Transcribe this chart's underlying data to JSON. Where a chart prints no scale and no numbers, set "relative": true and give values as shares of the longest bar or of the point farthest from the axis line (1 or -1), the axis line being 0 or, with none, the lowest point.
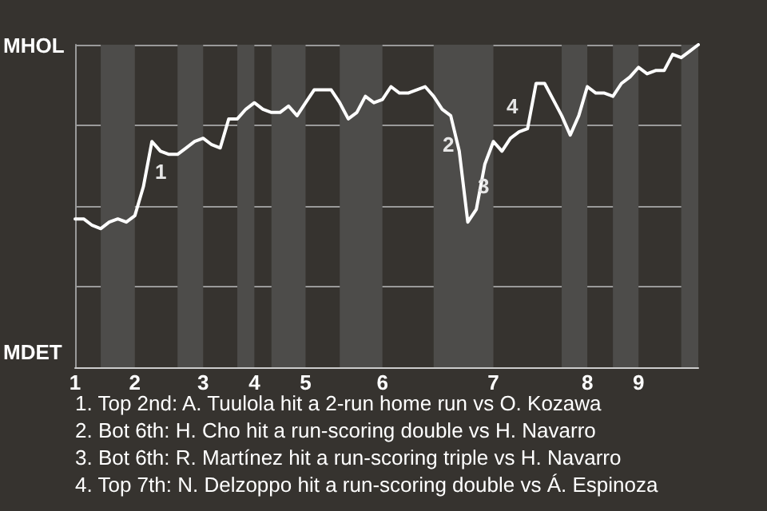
{
  "chart_data": {
    "type": "line",
    "relative": true,
    "categories": [
      "1",
      null,
      null,
      null,
      null,
      null,
      null,
      "2",
      null,
      null,
      null,
      null,
      null,
      null,
      null,
      "3",
      null,
      null,
      null,
      null,
      null,
      "4",
      null,
      null,
      null,
      null,
      null,
      "5",
      null,
      null,
      null,
      null,
      null,
      null,
      null,
      null,
      "6",
      null,
      null,
      null,
      null,
      null,
      null,
      null,
      null,
      null,
      null,
      null,
      null,
      "7",
      null,
      null,
      null,
      null,
      null,
      null,
      null,
      null,
      null,
      null,
      "8",
      null,
      null,
      null,
      null,
      null,
      "9",
      null,
      null,
      null,
      null,
      null,
      null,
      null
    ],
    "series": [
      {
        "color": "#ffffff",
        "values": [
          0.46,
          0.46,
          0.44,
          0.43,
          0.45,
          0.46,
          0.45,
          0.47,
          0.56,
          0.7,
          0.67,
          0.66,
          0.66,
          0.68,
          0.7,
          0.71,
          0.69,
          0.68,
          0.77,
          0.77,
          0.8,
          0.82,
          0.8,
          0.79,
          0.79,
          0.81,
          0.78,
          0.82,
          0.86,
          0.86,
          0.86,
          0.82,
          0.77,
          0.79,
          0.84,
          0.82,
          0.83,
          0.87,
          0.85,
          0.85,
          0.86,
          0.87,
          0.84,
          0.8,
          0.78,
          0.67,
          0.45,
          0.49,
          0.63,
          0.7,
          0.67,
          0.71,
          0.73,
          0.74,
          0.88,
          0.88,
          0.83,
          0.78,
          0.72,
          0.78,
          0.87,
          0.85,
          0.85,
          0.84,
          0.88,
          0.9,
          0.93,
          0.91,
          0.92,
          0.92,
          0.97,
          0.96,
          0.98,
          1.0
        ]
      }
    ],
    "grid": "y",
    "marker": "none",
    "line_style": "solid",
    "annotations": [
      "MHOL",
      "MDET",
      "1",
      "2",
      "3",
      "4",
      "1. Top 2nd: A. Tuulola hit a 2-run home run vs O. Kozawa",
      "2. Bot 6th: H. Cho hit a run-scoring double vs H. Navarro",
      "3. Bot 6th: R. Martínez hit a run-scoring triple vs H. Navarro",
      "4. Top 7th: N. Delzoppo hit a run-scoring double vs Á. Espinoza"
    ]
  }
}
